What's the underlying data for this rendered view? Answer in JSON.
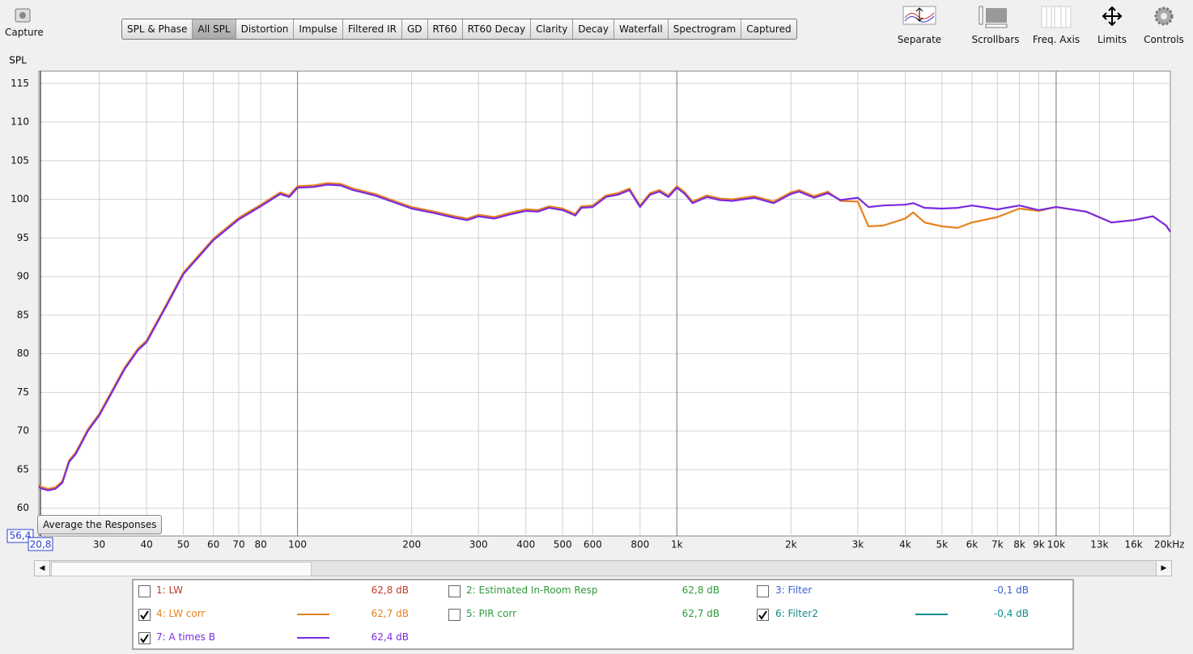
{
  "toolbar": {
    "capture": "Capture",
    "tabs": [
      "SPL & Phase",
      "All SPL",
      "Distortion",
      "Impulse",
      "Filtered IR",
      "GD",
      "RT60",
      "RT60 Decay",
      "Clarity",
      "Decay",
      "Waterfall",
      "Spectrogram",
      "Captured"
    ],
    "active_tab": 1,
    "tools": [
      "Separate",
      "Scrollbars",
      "Freq. Axis",
      "Limits",
      "Controls"
    ]
  },
  "button": "Average the Responses",
  "chart_data": {
    "type": "line",
    "ylabel": "SPL",
    "xscale": "log",
    "grid": true,
    "xlim": [
      20.8,
      20000
    ],
    "ylim": [
      56.4,
      116.6
    ],
    "xticks": [
      {
        "value": 20.8,
        "label": "20,8"
      },
      30,
      40,
      50,
      60,
      70,
      80,
      100,
      200,
      300,
      400,
      500,
      600,
      800,
      {
        "value": 1000,
        "label": "1k"
      },
      {
        "value": 2000,
        "label": "2k"
      },
      {
        "value": 3000,
        "label": "3k"
      },
      {
        "value": 4000,
        "label": "4k"
      },
      {
        "value": 5000,
        "label": "5k"
      },
      {
        "value": 6000,
        "label": "6k"
      },
      {
        "value": 7000,
        "label": "7k"
      },
      {
        "value": 8000,
        "label": "8k"
      },
      {
        "value": 9000,
        "label": "9k"
      },
      {
        "value": 10000,
        "label": "10k"
      },
      {
        "value": 13000,
        "label": "13k"
      },
      {
        "value": 16000,
        "label": "16k"
      },
      {
        "value": 20000,
        "label": "20kHz"
      }
    ],
    "yticks": [
      {
        "value": 56.4,
        "label": "56,4"
      },
      60,
      65,
      70,
      75,
      80,
      85,
      90,
      95,
      100,
      105,
      110,
      115
    ],
    "x": [
      20.8,
      21,
      22,
      23,
      24,
      25,
      26,
      27,
      28,
      30,
      32,
      35,
      38,
      40,
      45,
      50,
      60,
      70,
      80,
      90,
      95,
      100,
      110,
      120,
      130,
      140,
      160,
      180,
      200,
      230,
      260,
      280,
      300,
      330,
      360,
      400,
      430,
      460,
      500,
      540,
      560,
      600,
      650,
      700,
      750,
      800,
      850,
      900,
      950,
      1000,
      1050,
      1100,
      1200,
      1300,
      1400,
      1600,
      1800,
      2000,
      2100,
      2300,
      2500,
      2700,
      3000,
      3200,
      3500,
      4000,
      4200,
      4500,
      5000,
      5500,
      6000,
      7000,
      8000,
      9000,
      10000,
      12000,
      14000,
      16000,
      18000,
      19500,
      20000
    ],
    "series": [
      {
        "name": "4: LW corr",
        "color": "#e8821e",
        "values": [
          63.0,
          62.8,
          62.5,
          62.7,
          63.5,
          66.2,
          67.2,
          68.7,
          70.2,
          72.2,
          74.7,
          78.2,
          80.7,
          81.7,
          86.3,
          90.5,
          94.9,
          97.6,
          99.3,
          100.9,
          100.5,
          101.7,
          101.8,
          102.1,
          102.0,
          101.4,
          100.7,
          99.8,
          99.0,
          98.4,
          97.8,
          97.5,
          98.0,
          97.7,
          98.2,
          98.7,
          98.6,
          99.1,
          98.8,
          98.1,
          99.1,
          99.2,
          100.5,
          100.8,
          101.4,
          99.2,
          100.8,
          101.2,
          100.5,
          101.7,
          100.9,
          99.7,
          100.5,
          100.1,
          100.0,
          100.4,
          99.7,
          100.9,
          101.2,
          100.4,
          101.0,
          99.8,
          99.7,
          96.5,
          96.6,
          97.5,
          98.3,
          97.0,
          96.5,
          96.3,
          97.0,
          97.7,
          98.8,
          98.5,
          99.0,
          98.4,
          97.0,
          97.3,
          97.8,
          96.6,
          95.8
        ]
      },
      {
        "name": "7: A times B",
        "color": "#7a2be0",
        "values": [
          62.8,
          62.6,
          62.3,
          62.5,
          63.3,
          66.0,
          67.0,
          68.5,
          70.0,
          72.0,
          74.5,
          78.0,
          80.5,
          81.5,
          86.1,
          90.3,
          94.7,
          97.4,
          99.1,
          100.7,
          100.3,
          101.5,
          101.6,
          101.9,
          101.8,
          101.2,
          100.5,
          99.6,
          98.8,
          98.2,
          97.6,
          97.3,
          97.8,
          97.5,
          98.0,
          98.5,
          98.4,
          98.9,
          98.6,
          97.9,
          98.9,
          99.0,
          100.3,
          100.6,
          101.2,
          99.0,
          100.6,
          101.0,
          100.3,
          101.5,
          100.7,
          99.5,
          100.3,
          99.9,
          99.8,
          100.2,
          99.5,
          100.7,
          101.0,
          100.2,
          100.8,
          99.9,
          100.2,
          99.0,
          99.2,
          99.3,
          99.5,
          98.9,
          98.8,
          98.9,
          99.2,
          98.7,
          99.2,
          98.6,
          99.0,
          98.4,
          97.0,
          97.3,
          97.8,
          96.6,
          95.8
        ]
      }
    ]
  },
  "legend": [
    {
      "label": "1: LW",
      "value": "62,8 dB",
      "checked": false,
      "color": "#c0392b"
    },
    {
      "label": "4: LW corr",
      "value": "62,7 dB",
      "checked": true,
      "color": "#e8821e"
    },
    {
      "label": "7: A times B",
      "value": "62,4 dB",
      "checked": true,
      "color": "#7a2be0"
    },
    {
      "label": "2: Estimated In-Room Resp",
      "value": "62,8 dB",
      "checked": false,
      "color": "#2e9a3a"
    },
    {
      "label": "5: PIR corr",
      "value": "62,7 dB",
      "checked": false,
      "color": "#2e9a3a"
    },
    {
      "label": "3: Filter",
      "value": "-0,1 dB",
      "checked": false,
      "color": "#3a5fd0"
    },
    {
      "label": "6: Filter2",
      "value": "-0,4 dB",
      "checked": true,
      "color": "#138a8a"
    }
  ]
}
